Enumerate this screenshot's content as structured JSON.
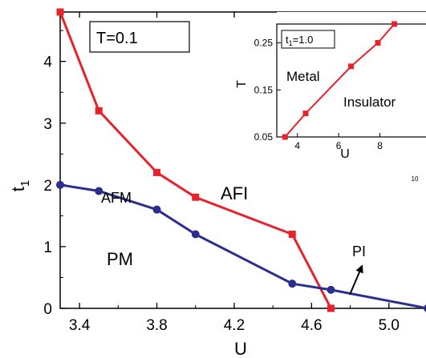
{
  "chart_data": [
    {
      "type": "line",
      "xlabel": "U",
      "ylabel": "t",
      "ylabel_sub": "1",
      "xlim": [
        3.3,
        5.2
      ],
      "ylim": [
        0,
        4.8
      ],
      "x_ticks": [
        3.4,
        3.8,
        4.2,
        4.6,
        5.0
      ],
      "x_tick_labels": [
        "3.4",
        "3.8",
        "4.2",
        "4.6",
        "5.0"
      ],
      "y_ticks": [
        0,
        1,
        2,
        3,
        4
      ],
      "y_tick_labels": [
        "0",
        "1",
        "2",
        "3",
        "4"
      ],
      "box_label": "T=0.1",
      "regions": {
        "afi": "AFI",
        "afm": "AFM",
        "pm": "PM",
        "pi": "PI"
      },
      "series": [
        {
          "key": "red",
          "color": "#e8222c",
          "marker": "square",
          "x": [
            3.3,
            3.5,
            3.8,
            4.0,
            4.5,
            4.7
          ],
          "y": [
            4.8,
            3.2,
            2.2,
            1.8,
            1.2,
            0.0
          ]
        },
        {
          "key": "blue",
          "color": "#2b2e8f",
          "marker": "circle",
          "x": [
            3.3,
            3.5,
            3.8,
            4.0,
            4.5,
            4.7,
            5.2
          ],
          "y": [
            2.0,
            1.9,
            1.6,
            1.2,
            0.4,
            0.3,
            0.0
          ]
        }
      ]
    },
    {
      "type": "line",
      "inset": true,
      "xlabel": "U",
      "ylabel": "T",
      "xlim": [
        3.0,
        10.0
      ],
      "ylim": [
        0.05,
        0.29
      ],
      "x_ticks": [
        4,
        6,
        8
      ],
      "x_tick_labels": [
        "4",
        "6",
        "8"
      ],
      "x_extra_tick_label": "10",
      "y_ticks": [
        0.05,
        0.15,
        0.25
      ],
      "y_tick_labels": [
        "0.05",
        "0.15",
        "0.25"
      ],
      "box_label_main": "t",
      "box_label_sub": "1",
      "box_label_rest": "=1.0",
      "regions": {
        "metal": "Metal",
        "insulator": "Insulator"
      },
      "series": [
        {
          "key": "inset-red",
          "color": "#e8222c",
          "marker": "square",
          "x": [
            3.0,
            3.4,
            4.4,
            6.6,
            7.9,
            8.7
          ],
          "y": [
            0.04,
            0.05,
            0.1,
            0.2,
            0.25,
            0.29
          ]
        }
      ]
    }
  ]
}
